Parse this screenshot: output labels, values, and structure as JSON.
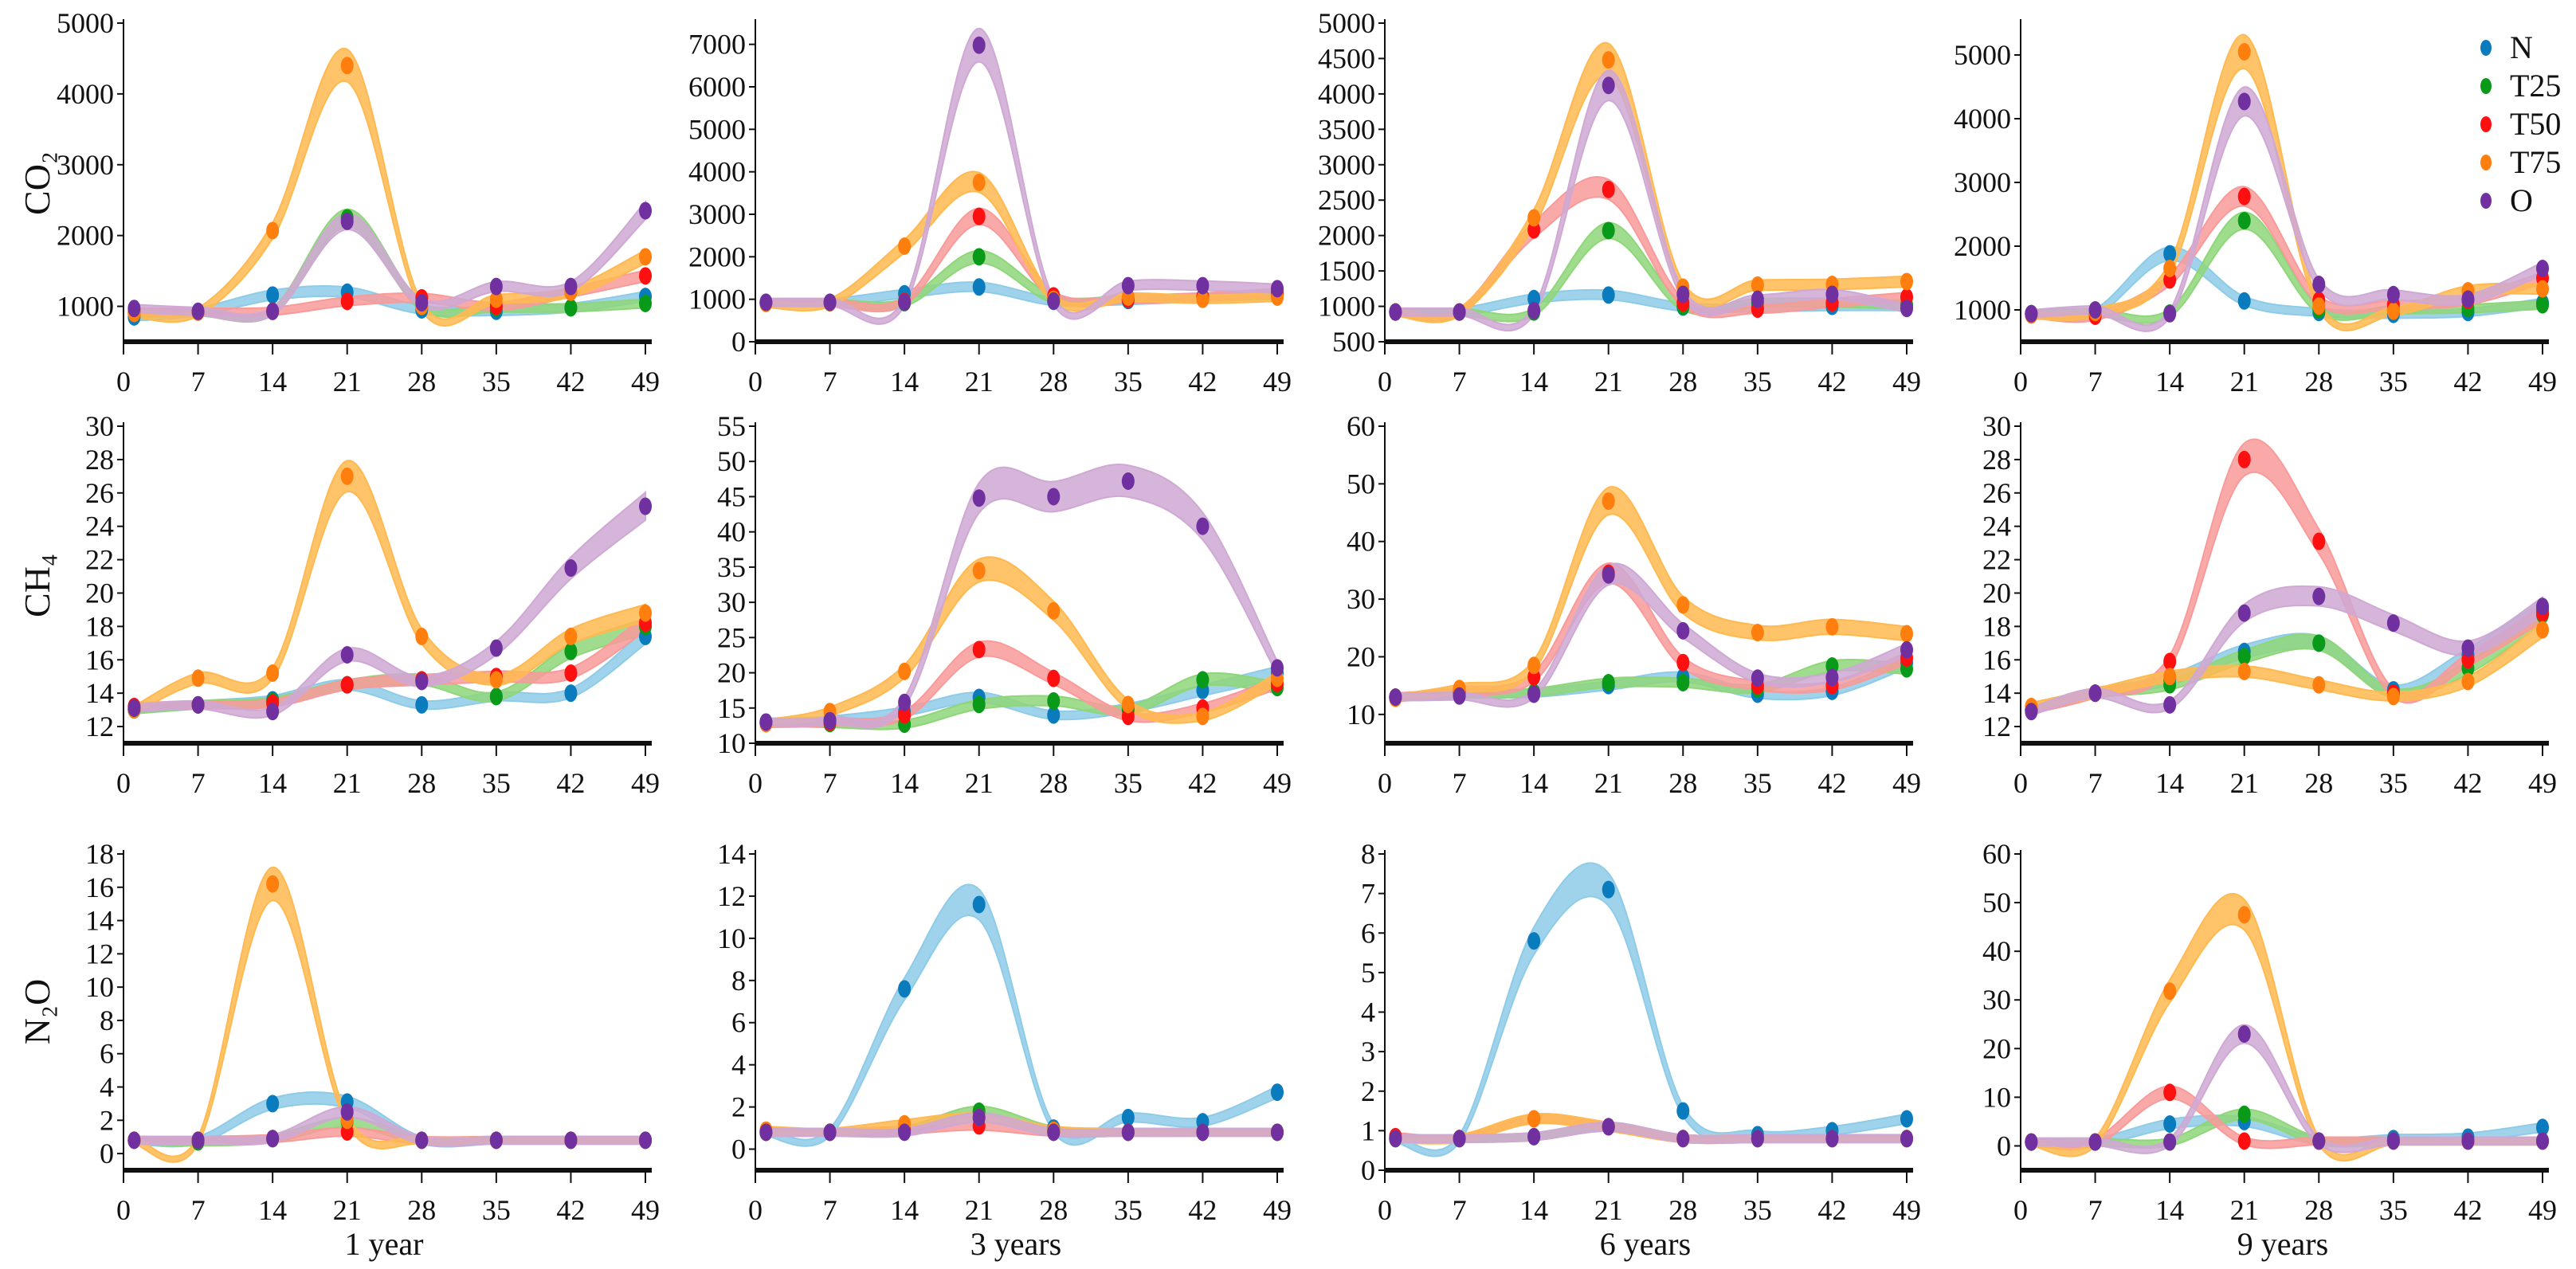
{
  "legend": [
    "N",
    "T25",
    "T50",
    "T75",
    "O"
  ],
  "colors": {
    "dot": {
      "N": "#0a7bbd",
      "T25": "#0a9a1a",
      "T50": "#ff1010",
      "T75": "#ff7f0e",
      "O": "#7030a0"
    },
    "band": {
      "N": "#8ecbe8",
      "T25": "#8fd67a",
      "T50": "#f99a9a",
      "T75": "#ffb950",
      "O": "#cfa8d4"
    }
  },
  "row_labels": [
    "CO₂",
    "CH₄",
    "N₂O"
  ],
  "col_titles": [
    "1 year",
    "3 years",
    "6 years",
    "9 years"
  ],
  "chart_data": {
    "type": "line",
    "x": [
      1,
      7,
      14,
      21,
      28,
      35,
      42,
      49
    ],
    "xticks": [
      0,
      7,
      14,
      21,
      28,
      35,
      42,
      49
    ],
    "xlim": [
      0,
      49
    ],
    "panels": [
      {
        "gas": "CO2",
        "period": "1 year",
        "ylim": [
          500,
          5000
        ],
        "yticks": [
          1000,
          2000,
          3000,
          4000,
          5000
        ],
        "series": {
          "N": [
            850,
            920,
            1160,
            1200,
            950,
            930,
            980,
            1140
          ],
          "T25": [
            900,
            920,
            930,
            2250,
            1000,
            980,
            980,
            1040
          ],
          "T50": [
            920,
            920,
            930,
            1070,
            1120,
            1000,
            1200,
            1430
          ],
          "T75": [
            900,
            920,
            2070,
            4400,
            1000,
            1100,
            1200,
            1700
          ],
          "O": [
            970,
            930,
            930,
            2200,
            1050,
            1280,
            1280,
            2350
          ]
        }
      },
      {
        "gas": "CO2",
        "period": "3 years",
        "ylim": [
          0,
          7500
        ],
        "yticks": [
          0,
          1000,
          2000,
          3000,
          4000,
          5000,
          6000,
          7000
        ],
        "series": {
          "N": [
            920,
            920,
            1130,
            1290,
            950,
            970,
            1050,
            1150
          ],
          "T25": [
            920,
            920,
            920,
            2000,
            1000,
            1000,
            1050,
            1100
          ],
          "T50": [
            920,
            920,
            950,
            2950,
            1080,
            1000,
            1050,
            1150
          ],
          "T75": [
            900,
            920,
            2250,
            3750,
            1000,
            1050,
            1000,
            1050
          ],
          "O": [
            930,
            930,
            930,
            6980,
            960,
            1320,
            1320,
            1250
          ]
        }
      },
      {
        "gas": "CO2",
        "period": "6 years",
        "ylim": [
          500,
          5000
        ],
        "yticks": [
          500,
          1000,
          1500,
          2000,
          2500,
          3000,
          3500,
          4000,
          4500,
          5000
        ],
        "series": {
          "N": [
            920,
            920,
            1110,
            1160,
            990,
            980,
            1000,
            1000
          ],
          "T25": [
            920,
            920,
            920,
            2070,
            1000,
            1050,
            1050,
            1020
          ],
          "T50": [
            920,
            920,
            2080,
            2650,
            1050,
            960,
            1050,
            1130
          ],
          "T75": [
            920,
            920,
            2250,
            4480,
            1270,
            1300,
            1310,
            1350
          ],
          "O": [
            920,
            920,
            940,
            4120,
            1170,
            1100,
            1170,
            970
          ]
        }
      },
      {
        "gas": "CO2",
        "period": "9 years",
        "ylim": [
          500,
          5500
        ],
        "yticks": [
          1000,
          2000,
          3000,
          4000,
          5000
        ],
        "series": {
          "N": [
            940,
            960,
            1880,
            1140,
            960,
            930,
            960,
            1110
          ],
          "T25": [
            940,
            960,
            950,
            2400,
            1000,
            1000,
            1020,
            1080
          ],
          "T50": [
            940,
            900,
            1470,
            2780,
            1150,
            1080,
            1150,
            1500
          ],
          "T75": [
            920,
            960,
            1650,
            5050,
            1060,
            980,
            1300,
            1330
          ],
          "O": [
            940,
            1000,
            940,
            4270,
            1400,
            1240,
            1170,
            1650
          ]
        }
      },
      {
        "gas": "CH4",
        "period": "1 year",
        "ylim": [
          11,
          30
        ],
        "yticks": [
          12,
          14,
          16,
          18,
          20,
          22,
          24,
          26,
          28,
          30
        ],
        "series": {
          "N": [
            13.0,
            13.3,
            13.6,
            14.5,
            13.3,
            13.8,
            14.0,
            17.4
          ],
          "T25": [
            13.0,
            13.3,
            13.5,
            14.5,
            14.8,
            13.8,
            16.5,
            18.0
          ],
          "T50": [
            13.2,
            13.3,
            13.4,
            14.5,
            14.8,
            15.0,
            15.2,
            18.2
          ],
          "T75": [
            13.0,
            14.9,
            15.2,
            27.0,
            17.4,
            14.8,
            17.4,
            18.8
          ],
          "O": [
            13.1,
            13.3,
            12.9,
            16.3,
            14.7,
            16.7,
            21.5,
            25.2
          ]
        }
      },
      {
        "gas": "CH4",
        "period": "3 years",
        "ylim": [
          10,
          55
        ],
        "yticks": [
          10,
          15,
          20,
          25,
          30,
          35,
          40,
          45,
          50,
          55
        ],
        "series": {
          "N": [
            13.0,
            13.3,
            14.5,
            16.5,
            14.0,
            15.0,
            17.5,
            20.0
          ],
          "T25": [
            13.0,
            12.8,
            12.7,
            15.5,
            16.0,
            14.7,
            19.0,
            17.9
          ],
          "T50": [
            12.8,
            13.0,
            14.0,
            23.3,
            19.2,
            13.8,
            15.0,
            18.5
          ],
          "T75": [
            12.8,
            14.5,
            20.2,
            34.5,
            28.8,
            15.5,
            13.8,
            19.2
          ],
          "O": [
            13.0,
            13.2,
            15.8,
            44.8,
            45.0,
            47.2,
            40.8,
            20.7
          ]
        }
      },
      {
        "gas": "CH4",
        "period": "6 years",
        "ylim": [
          5,
          60
        ],
        "yticks": [
          10,
          20,
          30,
          40,
          50,
          60
        ],
        "series": {
          "N": [
            13.0,
            13.5,
            13.7,
            15.0,
            16.5,
            13.5,
            14.0,
            19.0
          ],
          "T25": [
            13.0,
            13.5,
            13.8,
            15.5,
            15.5,
            14.5,
            18.4,
            17.9
          ],
          "T50": [
            13.0,
            14.0,
            16.5,
            34.5,
            19.0,
            15.0,
            15.0,
            19.8
          ],
          "T75": [
            12.8,
            14.5,
            18.5,
            47.0,
            29.0,
            24.2,
            25.2,
            24.0
          ],
          "O": [
            13.0,
            13.2,
            13.5,
            34.2,
            24.5,
            16.3,
            16.4,
            21.2
          ]
        }
      },
      {
        "gas": "CH4",
        "period": "9 years",
        "ylim": [
          11,
          30
        ],
        "yticks": [
          12,
          14,
          16,
          18,
          20,
          22,
          24,
          26,
          28,
          30
        ],
        "series": {
          "N": [
            13.0,
            14.0,
            14.8,
            16.5,
            17.0,
            14.2,
            16.3,
            19.0
          ],
          "T25": [
            13.0,
            14.0,
            14.5,
            16.2,
            17.0,
            14.0,
            15.5,
            18.7
          ],
          "T50": [
            13.0,
            14.0,
            15.9,
            28.0,
            23.1,
            14.0,
            16.0,
            18.8
          ],
          "T75": [
            13.2,
            14.0,
            15.0,
            15.3,
            14.5,
            13.8,
            14.7,
            17.8
          ],
          "O": [
            12.9,
            14.0,
            13.3,
            18.8,
            19.8,
            18.2,
            16.7,
            19.2
          ]
        }
      },
      {
        "gas": "N2O",
        "period": "1 year",
        "ylim": [
          -1,
          18
        ],
        "yticks": [
          0,
          2,
          4,
          6,
          8,
          10,
          12,
          14,
          16,
          18
        ],
        "series": {
          "N": [
            0.8,
            0.8,
            3.0,
            3.1,
            0.8,
            0.8,
            0.8,
            0.8
          ],
          "T25": [
            0.8,
            0.7,
            0.9,
            1.9,
            0.8,
            0.8,
            0.8,
            0.8
          ],
          "T50": [
            0.8,
            0.8,
            0.9,
            1.3,
            0.8,
            0.8,
            0.8,
            0.8
          ],
          "T75": [
            0.8,
            0.8,
            16.2,
            2.0,
            0.8,
            0.8,
            0.8,
            0.8
          ],
          "O": [
            0.8,
            0.8,
            0.9,
            2.5,
            0.8,
            0.8,
            0.8,
            0.8
          ]
        }
      },
      {
        "gas": "N2O",
        "period": "3 years",
        "ylim": [
          -1,
          14
        ],
        "yticks": [
          0,
          2,
          4,
          6,
          8,
          10,
          12,
          14
        ],
        "series": {
          "N": [
            0.8,
            0.8,
            7.6,
            11.6,
            1.0,
            1.5,
            1.3,
            2.7
          ],
          "T25": [
            0.8,
            0.8,
            0.9,
            1.8,
            0.9,
            0.8,
            0.8,
            0.8
          ],
          "T50": [
            0.8,
            0.8,
            0.9,
            1.1,
            0.8,
            0.8,
            0.8,
            0.8
          ],
          "T75": [
            0.9,
            0.8,
            1.2,
            1.5,
            0.9,
            0.8,
            0.8,
            0.8
          ],
          "O": [
            0.8,
            0.8,
            0.8,
            1.5,
            0.8,
            0.8,
            0.8,
            0.8
          ]
        }
      },
      {
        "gas": "N2O",
        "period": "6 years",
        "ylim": [
          0,
          8
        ],
        "yticks": [
          0,
          1,
          2,
          3,
          4,
          5,
          6,
          7,
          8
        ],
        "series": {
          "N": [
            0.8,
            0.8,
            5.8,
            7.1,
            1.5,
            0.9,
            1.0,
            1.3
          ],
          "T25": [
            0.8,
            0.8,
            0.85,
            1.1,
            0.8,
            0.8,
            0.8,
            0.8
          ],
          "T50": [
            0.85,
            0.8,
            1.3,
            1.1,
            0.8,
            0.8,
            0.8,
            0.8
          ],
          "T75": [
            0.8,
            0.8,
            1.3,
            1.1,
            0.8,
            0.8,
            0.8,
            0.8
          ],
          "O": [
            0.8,
            0.8,
            0.85,
            1.1,
            0.8,
            0.8,
            0.8,
            0.8
          ]
        }
      },
      {
        "gas": "N2O",
        "period": "9 years",
        "ylim": [
          -5,
          60
        ],
        "yticks": [
          0,
          10,
          20,
          30,
          40,
          50,
          60
        ],
        "series": {
          "N": [
            0.8,
            0.8,
            4.5,
            5.0,
            1.0,
            1.5,
            1.8,
            3.8
          ],
          "T25": [
            0.8,
            0.8,
            0.8,
            6.5,
            1.0,
            1.0,
            1.0,
            1.0
          ],
          "T50": [
            0.8,
            0.8,
            11.0,
            1.0,
            1.0,
            1.0,
            1.0,
            1.0
          ],
          "T75": [
            0.8,
            0.8,
            31.8,
            47.5,
            1.0,
            1.0,
            1.0,
            1.0
          ],
          "O": [
            0.8,
            0.8,
            0.8,
            23.0,
            1.0,
            1.0,
            1.0,
            1.0
          ]
        }
      }
    ]
  }
}
